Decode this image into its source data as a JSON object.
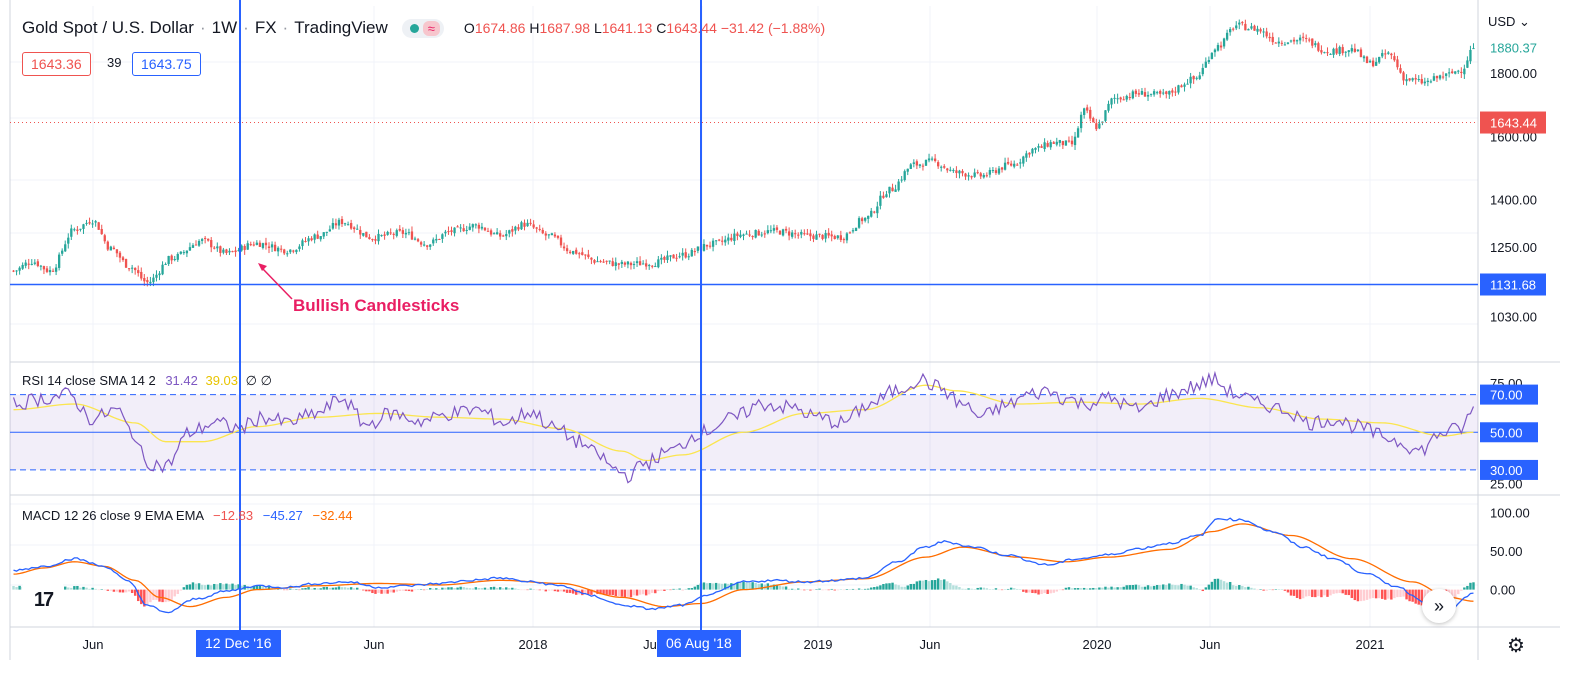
{
  "header": {
    "symbol": "Gold Spot / U.S. Dollar",
    "interval": "1W",
    "exchange": "FX",
    "source": "TradingView",
    "ohlc": {
      "o_label": "O",
      "o": "1674.86",
      "h_label": "H",
      "h": "1687.98",
      "l_label": "L",
      "l": "1641.13",
      "c_label": "C",
      "c": "1643.44",
      "change": "−31.42 (−1.88%)"
    },
    "bid": "1643.36",
    "spread": "39",
    "ask": "1643.75",
    "currency": "USD ⌄"
  },
  "colors": {
    "up": "#26a69a",
    "down": "#ef5350",
    "crosshair": "#2962ff",
    "rsi": "#7e57c2",
    "rsi_sma": "#fbe54e",
    "macd": "#2962ff",
    "signal": "#ff6d00",
    "annotation": "#e91e63"
  },
  "annotation": {
    "text": "Bullish Candlesticks"
  },
  "rsi_legend": {
    "name": "RSI 14 close SMA 14 2",
    "v1": "31.42",
    "v2": "39.03",
    "v3": "∅ ∅"
  },
  "macd_legend": {
    "name": "MACD 12 26 close 9 EMA EMA",
    "hist": "−12.83",
    "macd": "−45.27",
    "signal": "−32.44"
  },
  "date_tags": [
    "12 Dec '16",
    "06 Aug '18"
  ],
  "icons": {
    "logo": "tradingview-logo-icon",
    "scroll": "scroll-to-realtime-icon",
    "settings": "gear-icon"
  },
  "logo_text": "17",
  "scroll_glyph": "»",
  "gear_glyph": "⚙",
  "chart_data": [
    {
      "type": "candlestick",
      "title": "Gold Spot / U.S. Dollar",
      "ylim": [
        950,
        1980
      ],
      "y_ticks": [
        "1800.00",
        "1600.00",
        "1400.00",
        "1250.00",
        "1030.00"
      ],
      "x_ticks": [
        "Jun",
        "2018",
        "Ju",
        "2019",
        "Jun",
        "2020",
        "Jun",
        "2021"
      ],
      "x_ticks_partial": [
        "Jun"
      ],
      "price_labels": {
        "last": "1643.44",
        "top_partial": "1880.37",
        "horizontal_line": "1131.68"
      },
      "horizontal_line": 1131.68,
      "last_price": 1643.44,
      "anchors": [
        [
          0,
          1175
        ],
        [
          6,
          1205
        ],
        [
          12,
          1175
        ],
        [
          20,
          1305
        ],
        [
          26,
          1335
        ],
        [
          32,
          1245
        ],
        [
          38,
          1190
        ],
        [
          44,
          1138
        ],
        [
          52,
          1215
        ],
        [
          62,
          1270
        ],
        [
          70,
          1230
        ],
        [
          80,
          1262
        ],
        [
          90,
          1240
        ],
        [
          100,
          1285
        ],
        [
          108,
          1330
        ],
        [
          118,
          1280
        ],
        [
          128,
          1295
        ],
        [
          136,
          1260
        ],
        [
          144,
          1300
        ],
        [
          152,
          1318
        ],
        [
          160,
          1285
        ],
        [
          168,
          1322
        ],
        [
          176,
          1285
        ],
        [
          184,
          1235
        ],
        [
          192,
          1205
        ],
        [
          200,
          1195
        ],
        [
          210,
          1200
        ],
        [
          220,
          1225
        ],
        [
          230,
          1260
        ],
        [
          240,
          1290
        ],
        [
          250,
          1300
        ],
        [
          262,
          1285
        ],
        [
          272,
          1282
        ],
        [
          280,
          1340
        ],
        [
          288,
          1430
        ],
        [
          296,
          1510
        ],
        [
          302,
          1520
        ],
        [
          310,
          1485
        ],
        [
          318,
          1475
        ],
        [
          328,
          1510
        ],
        [
          336,
          1560
        ],
        [
          342,
          1580
        ],
        [
          348,
          1575
        ],
        [
          352,
          1680
        ],
        [
          356,
          1630
        ],
        [
          362,
          1720
        ],
        [
          370,
          1735
        ],
        [
          378,
          1730
        ],
        [
          388,
          1780
        ],
        [
          396,
          1885
        ],
        [
          402,
          1950
        ],
        [
          408,
          1940
        ],
        [
          416,
          1900
        ],
        [
          424,
          1905
        ],
        [
          432,
          1870
        ],
        [
          440,
          1875
        ],
        [
          446,
          1830
        ],
        [
          452,
          1860
        ],
        [
          458,
          1780
        ],
        [
          464,
          1770
        ],
        [
          470,
          1790
        ],
        [
          476,
          1810
        ],
        [
          480,
          1880
        ]
      ]
    },
    {
      "type": "line",
      "title": "RSI 14 close SMA 14 2",
      "ylim": [
        22,
        82
      ],
      "bands": {
        "upper": 70,
        "middle": 50,
        "lower": 30
      },
      "y_ticks": [
        "70.00",
        "50.00",
        "30.00"
      ],
      "y_ticks_partial": [
        "75.00",
        "25.00"
      ],
      "series": [
        {
          "name": "RSI",
          "anchors": [
            [
              0,
              65
            ],
            [
              10,
              68
            ],
            [
              18,
              70
            ],
            [
              26,
              57
            ],
            [
              34,
              62
            ],
            [
              38,
              52
            ],
            [
              44,
              34
            ],
            [
              50,
              32
            ],
            [
              58,
              50
            ],
            [
              66,
              55
            ],
            [
              74,
              52
            ],
            [
              82,
              58
            ],
            [
              90,
              55
            ],
            [
              100,
              60
            ],
            [
              108,
              68
            ],
            [
              116,
              54
            ],
            [
              124,
              60
            ],
            [
              134,
              56
            ],
            [
              144,
              60
            ],
            [
              152,
              62
            ],
            [
              162,
              55
            ],
            [
              170,
              61
            ],
            [
              178,
              52
            ],
            [
              186,
              45
            ],
            [
              192,
              38
            ],
            [
              198,
              30
            ],
            [
              202,
              27
            ],
            [
              208,
              34
            ],
            [
              216,
              40
            ],
            [
              226,
              50
            ],
            [
              236,
              57
            ],
            [
              246,
              65
            ],
            [
              256,
              63
            ],
            [
              264,
              58
            ],
            [
              272,
              55
            ],
            [
              282,
              65
            ],
            [
              290,
              72
            ],
            [
              298,
              78
            ],
            [
              304,
              74
            ],
            [
              312,
              65
            ],
            [
              318,
              58
            ],
            [
              326,
              64
            ],
            [
              334,
              70
            ],
            [
              340,
              72
            ],
            [
              346,
              68
            ],
            [
              352,
              65
            ],
            [
              360,
              68
            ],
            [
              370,
              62
            ],
            [
              380,
              70
            ],
            [
              388,
              74
            ],
            [
              394,
              78
            ],
            [
              402,
              70
            ],
            [
              410,
              65
            ],
            [
              418,
              62
            ],
            [
              426,
              55
            ],
            [
              434,
              57
            ],
            [
              442,
              53
            ],
            [
              450,
              48
            ],
            [
              456,
              45
            ],
            [
              462,
              40
            ],
            [
              470,
              50
            ],
            [
              476,
              52
            ],
            [
              480,
              62
            ]
          ]
        },
        {
          "name": "SMA",
          "anchors": [
            [
              0,
              62
            ],
            [
              20,
              65
            ],
            [
              40,
              55
            ],
            [
              50,
              45
            ],
            [
              62,
              45
            ],
            [
              80,
              53
            ],
            [
              100,
              58
            ],
            [
              120,
              60
            ],
            [
              140,
              58
            ],
            [
              160,
              57
            ],
            [
              180,
              52
            ],
            [
              200,
              40
            ],
            [
              208,
              35
            ],
            [
              220,
              38
            ],
            [
              240,
              50
            ],
            [
              260,
              60
            ],
            [
              280,
              62
            ],
            [
              300,
              75
            ],
            [
              310,
              72
            ],
            [
              330,
              65
            ],
            [
              350,
              66
            ],
            [
              370,
              65
            ],
            [
              390,
              68
            ],
            [
              410,
              63
            ],
            [
              430,
              57
            ],
            [
              450,
              55
            ],
            [
              470,
              48
            ],
            [
              480,
              50
            ]
          ]
        }
      ]
    },
    {
      "type": "line+histogram",
      "title": "MACD 12 26 close 9 EMA EMA",
      "ylim": [
        -38,
        112
      ],
      "y_ticks": [
        "100.00",
        "50.00",
        "0.00"
      ],
      "series": [
        {
          "name": "MACD",
          "anchors": [
            [
              0,
              25
            ],
            [
              10,
              30
            ],
            [
              20,
              40
            ],
            [
              30,
              30
            ],
            [
              38,
              10
            ],
            [
              44,
              -20
            ],
            [
              50,
              -30
            ],
            [
              60,
              -12
            ],
            [
              70,
              -2
            ],
            [
              80,
              5
            ],
            [
              90,
              3
            ],
            [
              100,
              8
            ],
            [
              110,
              10
            ],
            [
              120,
              3
            ],
            [
              130,
              5
            ],
            [
              140,
              8
            ],
            [
              150,
              12
            ],
            [
              160,
              15
            ],
            [
              170,
              10
            ],
            [
              180,
              5
            ],
            [
              190,
              -8
            ],
            [
              200,
              -20
            ],
            [
              210,
              -25
            ],
            [
              220,
              -20
            ],
            [
              230,
              -5
            ],
            [
              240,
              10
            ],
            [
              250,
              12
            ],
            [
              260,
              10
            ],
            [
              270,
              12
            ],
            [
              280,
              15
            ],
            [
              290,
              35
            ],
            [
              300,
              55
            ],
            [
              306,
              62
            ],
            [
              316,
              55
            ],
            [
              326,
              45
            ],
            [
              340,
              32
            ],
            [
              350,
              40
            ],
            [
              360,
              45
            ],
            [
              370,
              53
            ],
            [
              380,
              60
            ],
            [
              390,
              70
            ],
            [
              396,
              92
            ],
            [
              404,
              90
            ],
            [
              414,
              75
            ],
            [
              424,
              55
            ],
            [
              434,
              40
            ],
            [
              444,
              22
            ],
            [
              454,
              5
            ],
            [
              464,
              -15
            ],
            [
              472,
              -25
            ],
            [
              480,
              -5
            ]
          ]
        },
        {
          "name": "Signal",
          "anchors": [
            [
              0,
              20
            ],
            [
              10,
              28
            ],
            [
              20,
              36
            ],
            [
              30,
              30
            ],
            [
              40,
              12
            ],
            [
              48,
              -10
            ],
            [
              58,
              -22
            ],
            [
              70,
              -10
            ],
            [
              80,
              0
            ],
            [
              100,
              5
            ],
            [
              120,
              8
            ],
            [
              140,
              6
            ],
            [
              160,
              12
            ],
            [
              180,
              8
            ],
            [
              200,
              -10
            ],
            [
              214,
              -22
            ],
            [
              226,
              -18
            ],
            [
              240,
              0
            ],
            [
              260,
              10
            ],
            [
              280,
              14
            ],
            [
              300,
              42
            ],
            [
              312,
              55
            ],
            [
              330,
              42
            ],
            [
              346,
              36
            ],
            [
              360,
              42
            ],
            [
              380,
              52
            ],
            [
              394,
              75
            ],
            [
              404,
              85
            ],
            [
              420,
              70
            ],
            [
              440,
              40
            ],
            [
              460,
              10
            ],
            [
              472,
              -10
            ],
            [
              480,
              -15
            ]
          ]
        }
      ]
    }
  ]
}
